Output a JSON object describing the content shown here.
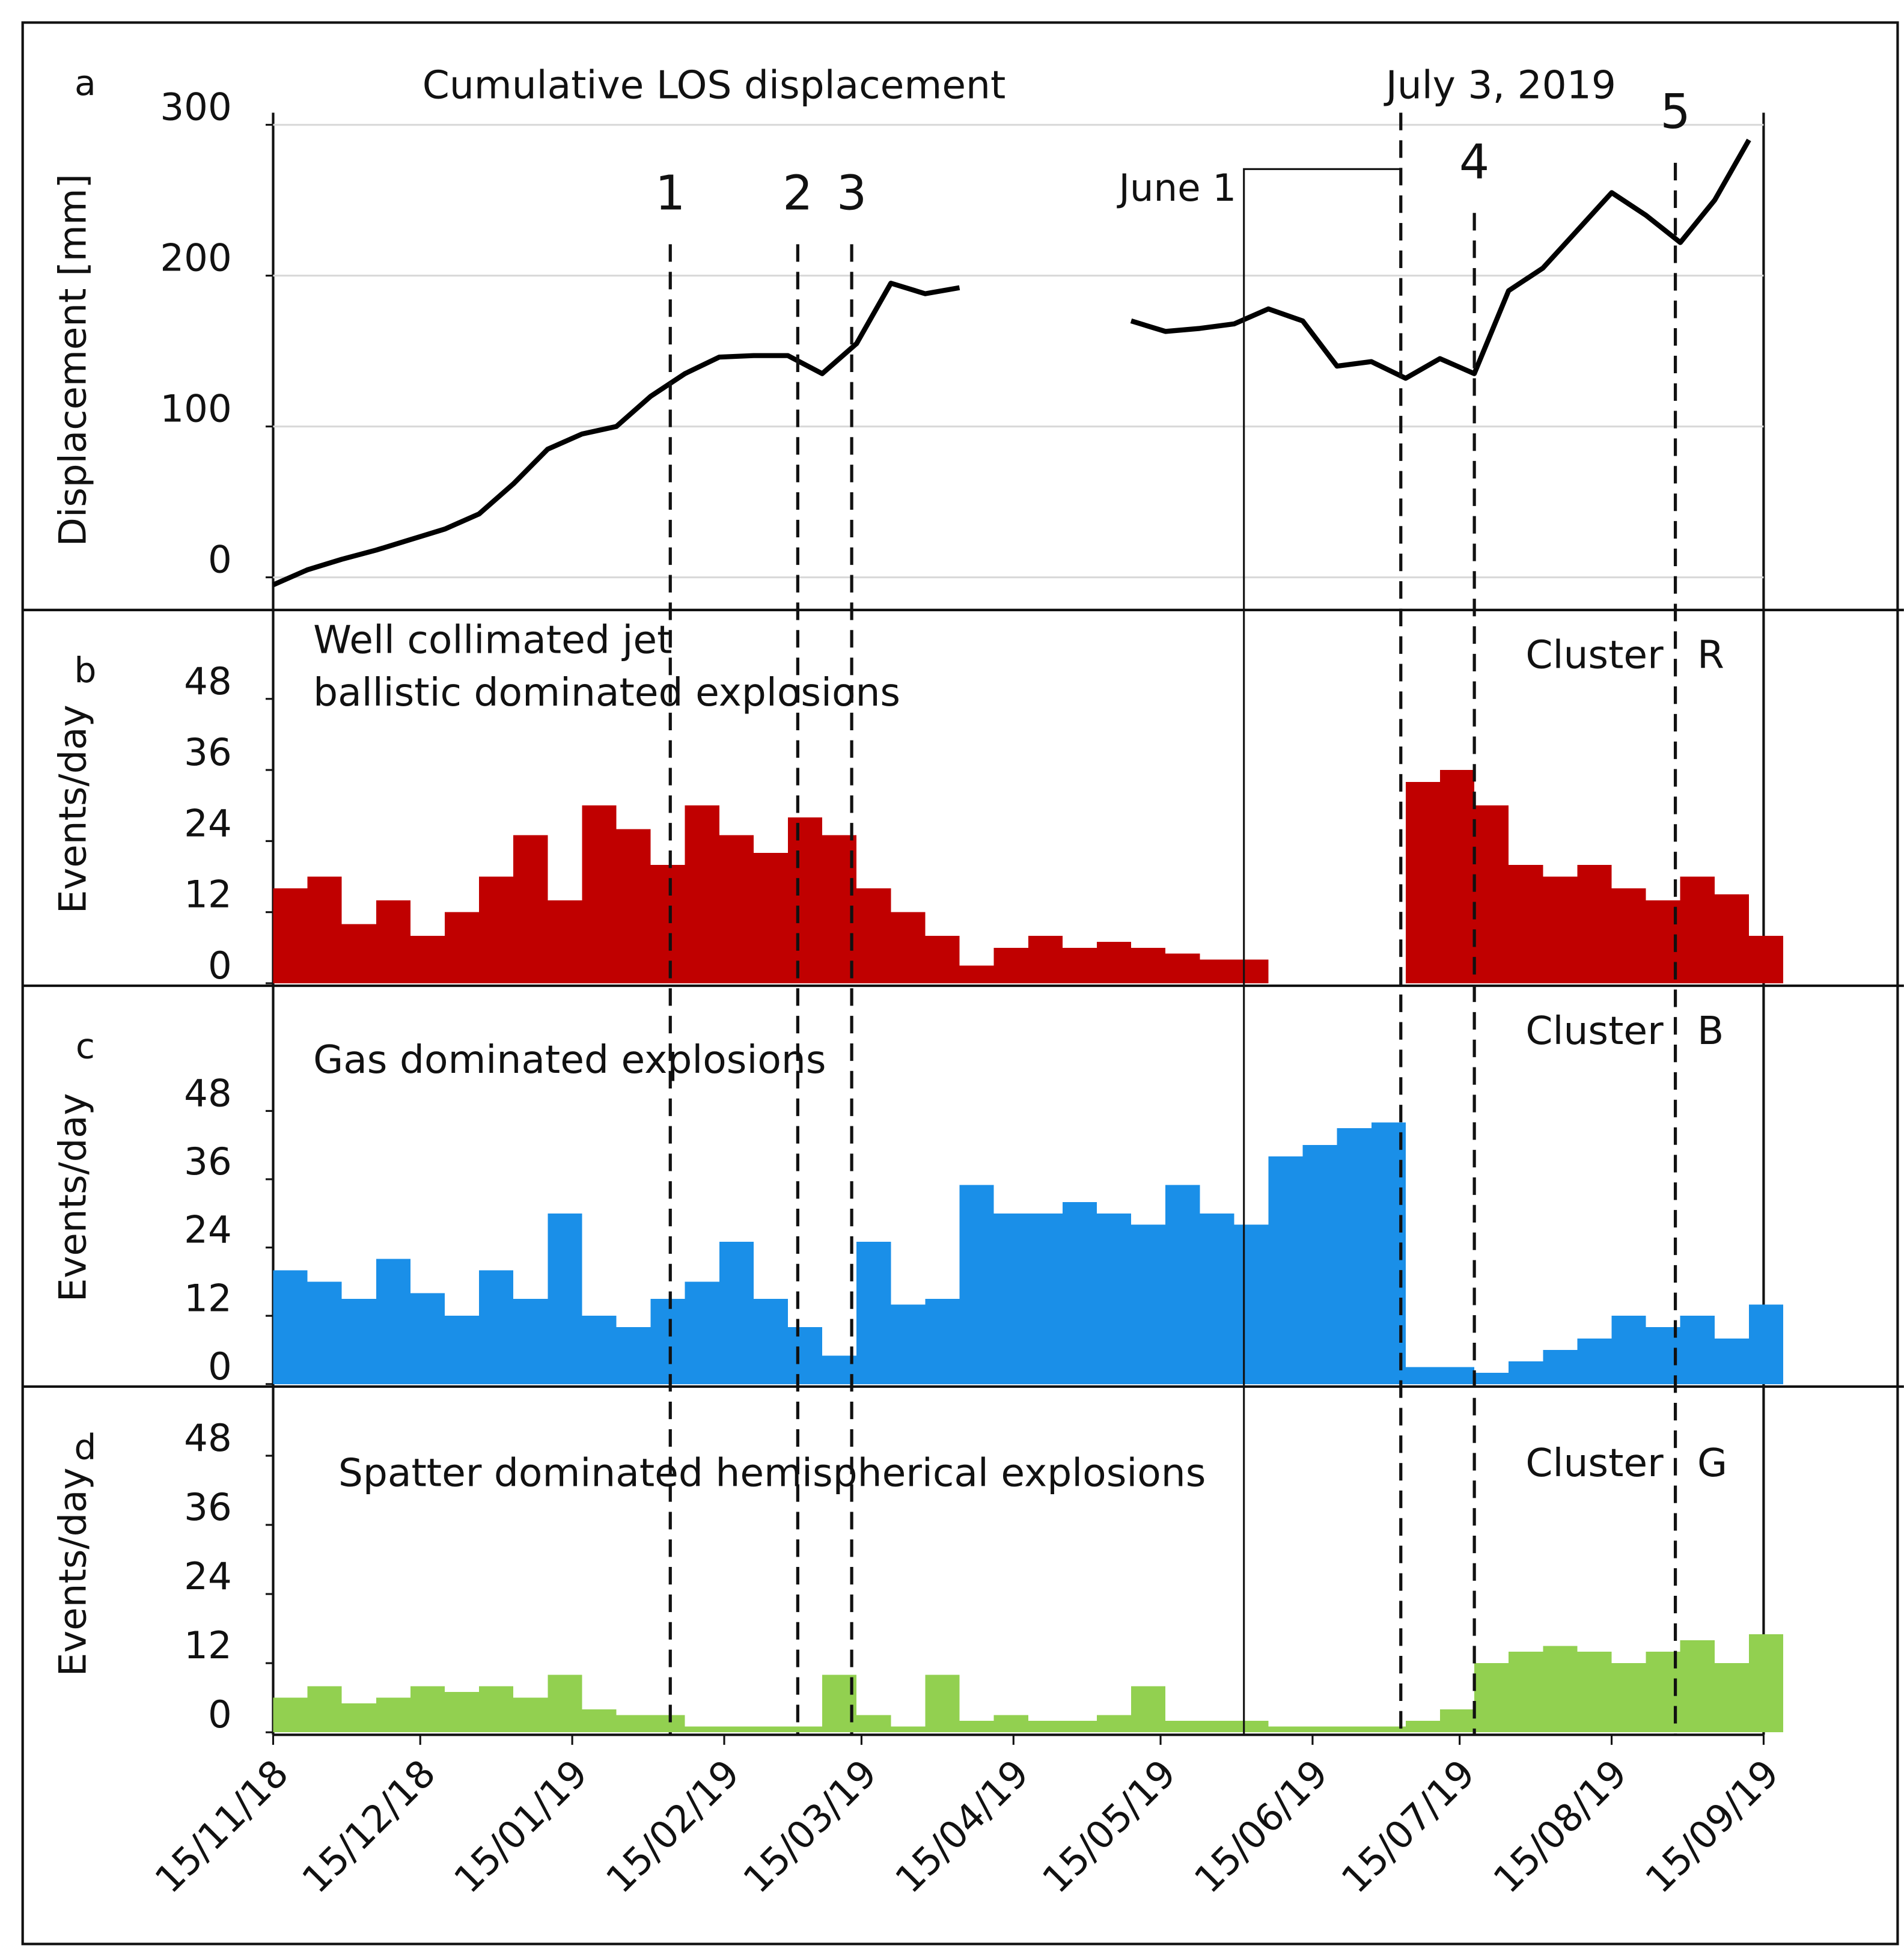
{
  "chart_data": [
    {
      "type": "line",
      "panel": "a",
      "title": "Cumulative LOS displacement",
      "ylabel": "Displacement [mm]",
      "color": "#000000",
      "xlim": [
        "2018-11-15",
        "2019-09-15"
      ],
      "ylim": [
        -20,
        308
      ],
      "yticks": [
        0,
        100,
        200,
        300
      ],
      "grid": true,
      "x": [
        "2018-11-15",
        "2018-11-22",
        "2018-11-29",
        "2018-12-06",
        "2018-12-13",
        "2018-12-20",
        "2018-12-27",
        "2019-01-03",
        "2019-01-10",
        "2019-01-17",
        "2019-01-24",
        "2019-01-31",
        "2019-02-07",
        "2019-02-14",
        "2019-02-21",
        "2019-02-28",
        "2019-03-07",
        "2019-03-14",
        "2019-03-21",
        "2019-03-28",
        "2019-04-04",
        "2019-04-11",
        "2019-04-18",
        "2019-04-25",
        "2019-05-02",
        "2019-05-09",
        "2019-05-16",
        "2019-05-23",
        "2019-05-30",
        "2019-06-06",
        "2019-06-13",
        "2019-06-20",
        "2019-06-27",
        "2019-07-04",
        "2019-07-11",
        "2019-07-18",
        "2019-07-25",
        "2019-08-01",
        "2019-08-08",
        "2019-08-15",
        "2019-08-22",
        "2019-08-29",
        "2019-09-05",
        "2019-09-12"
      ],
      "values": [
        -5,
        5,
        12,
        18,
        25,
        32,
        42,
        62,
        85,
        95,
        100,
        120,
        135,
        146,
        147,
        147,
        135,
        155,
        195,
        188,
        192,
        null,
        null,
        null,
        null,
        170,
        163,
        165,
        168,
        178,
        170,
        140,
        143,
        132,
        145,
        135,
        190,
        205,
        230,
        255,
        240,
        222,
        250,
        290
      ],
      "markers": [
        {
          "label": "1",
          "x": "2019-02-04"
        },
        {
          "label": "2",
          "x": "2019-03-02"
        },
        {
          "label": "3",
          "x": "2019-03-13"
        },
        {
          "label": "4",
          "x": "2019-07-18"
        },
        {
          "label": "5",
          "x": "2019-08-28"
        }
      ],
      "window": {
        "start": "2019-06-01",
        "end": "2019-07-03",
        "start_label": "June 1",
        "end_label": "July 3, 2019"
      }
    },
    {
      "type": "bar",
      "panel": "b",
      "title_lines": [
        "Well collimated jet",
        "ballistic dominated explosions"
      ],
      "ylabel": "Events/day",
      "cluster_prefix": "Cluster",
      "cluster": "R",
      "color": "#c00000",
      "xlim": [
        "2018-11-15",
        "2019-09-15"
      ],
      "ylim": [
        0,
        63
      ],
      "yticks": [
        0,
        12,
        24,
        36,
        48
      ],
      "x": [
        "2018-11-15",
        "2018-11-22",
        "2018-11-29",
        "2018-12-06",
        "2018-12-13",
        "2018-12-20",
        "2018-12-27",
        "2019-01-03",
        "2019-01-10",
        "2019-01-17",
        "2019-01-24",
        "2019-01-31",
        "2019-02-07",
        "2019-02-14",
        "2019-02-21",
        "2019-02-28",
        "2019-03-07",
        "2019-03-14",
        "2019-03-21",
        "2019-03-28",
        "2019-04-04",
        "2019-04-11",
        "2019-04-18",
        "2019-04-25",
        "2019-05-02",
        "2019-05-09",
        "2019-05-16",
        "2019-05-23",
        "2019-05-30",
        "2019-06-06",
        "2019-06-13",
        "2019-06-20",
        "2019-06-27",
        "2019-07-04",
        "2019-07-11",
        "2019-07-18",
        "2019-07-25",
        "2019-08-01",
        "2019-08-08",
        "2019-08-15",
        "2019-08-22",
        "2019-08-29",
        "2019-09-05",
        "2019-09-12"
      ],
      "values": [
        16,
        18,
        10,
        14,
        8,
        12,
        18,
        25,
        14,
        30,
        26,
        20,
        30,
        25,
        22,
        28,
        25,
        16,
        12,
        8,
        3,
        6,
        8,
        6,
        7,
        6,
        5,
        4,
        4,
        0,
        0,
        0,
        0,
        34,
        36,
        30,
        20,
        18,
        20,
        16,
        14,
        18,
        15,
        8
      ]
    },
    {
      "type": "bar",
      "panel": "c",
      "title": "Gas dominated explosions",
      "ylabel": "Events/day",
      "cluster_prefix": "Cluster",
      "cluster": "B",
      "color": "#1a8fe8",
      "xlim": [
        "2018-11-15",
        "2019-09-15"
      ],
      "ylim": [
        0,
        70
      ],
      "yticks": [
        0,
        12,
        24,
        36,
        48
      ],
      "x": [
        "2018-11-15",
        "2018-11-22",
        "2018-11-29",
        "2018-12-06",
        "2018-12-13",
        "2018-12-20",
        "2018-12-27",
        "2019-01-03",
        "2019-01-10",
        "2019-01-17",
        "2019-01-24",
        "2019-01-31",
        "2019-02-07",
        "2019-02-14",
        "2019-02-21",
        "2019-02-28",
        "2019-03-07",
        "2019-03-14",
        "2019-03-21",
        "2019-03-28",
        "2019-04-04",
        "2019-04-11",
        "2019-04-18",
        "2019-04-25",
        "2019-05-02",
        "2019-05-09",
        "2019-05-16",
        "2019-05-23",
        "2019-05-30",
        "2019-06-06",
        "2019-06-13",
        "2019-06-20",
        "2019-06-27",
        "2019-07-04",
        "2019-07-11",
        "2019-07-18",
        "2019-07-25",
        "2019-08-01",
        "2019-08-08",
        "2019-08-15",
        "2019-08-22",
        "2019-08-29",
        "2019-09-05",
        "2019-09-12"
      ],
      "values": [
        20,
        18,
        15,
        22,
        16,
        12,
        20,
        15,
        30,
        12,
        10,
        15,
        18,
        25,
        15,
        10,
        5,
        25,
        14,
        15,
        35,
        30,
        30,
        32,
        30,
        28,
        35,
        30,
        28,
        40,
        42,
        45,
        46,
        3,
        3,
        2,
        4,
        6,
        8,
        12,
        10,
        12,
        8,
        14
      ]
    },
    {
      "type": "bar",
      "panel": "d",
      "title": "Spatter dominated hemispherical explosions",
      "ylabel": "Events/day",
      "cluster_prefix": "Cluster",
      "cluster": "G",
      "color": "#92d050",
      "xlim": [
        "2018-11-15",
        "2019-09-15"
      ],
      "ylim": [
        0,
        60
      ],
      "yticks": [
        0,
        12,
        24,
        36,
        48
      ],
      "xticks": [
        {
          "value": "2018-11-15",
          "label": "15/11/18"
        },
        {
          "value": "2018-12-15",
          "label": "15/12/18"
        },
        {
          "value": "2019-01-15",
          "label": "15/01/19"
        },
        {
          "value": "2019-02-15",
          "label": "15/02/19"
        },
        {
          "value": "2019-03-15",
          "label": "15/03/19"
        },
        {
          "value": "2019-04-15",
          "label": "15/04/19"
        },
        {
          "value": "2019-05-15",
          "label": "15/05/19"
        },
        {
          "value": "2019-06-15",
          "label": "15/06/19"
        },
        {
          "value": "2019-07-15",
          "label": "15/07/19"
        },
        {
          "value": "2019-08-15",
          "label": "15/08/19"
        },
        {
          "value": "2019-09-15",
          "label": "15/09/19"
        }
      ],
      "x": [
        "2018-11-15",
        "2018-11-22",
        "2018-11-29",
        "2018-12-06",
        "2018-12-13",
        "2018-12-20",
        "2018-12-27",
        "2019-01-03",
        "2019-01-10",
        "2019-01-17",
        "2019-01-24",
        "2019-01-31",
        "2019-02-07",
        "2019-02-14",
        "2019-02-21",
        "2019-02-28",
        "2019-03-07",
        "2019-03-14",
        "2019-03-21",
        "2019-03-28",
        "2019-04-04",
        "2019-04-11",
        "2019-04-18",
        "2019-04-25",
        "2019-05-02",
        "2019-05-09",
        "2019-05-16",
        "2019-05-23",
        "2019-05-30",
        "2019-06-06",
        "2019-06-13",
        "2019-06-20",
        "2019-06-27",
        "2019-07-04",
        "2019-07-11",
        "2019-07-18",
        "2019-07-25",
        "2019-08-01",
        "2019-08-08",
        "2019-08-15",
        "2019-08-22",
        "2019-08-29",
        "2019-09-05",
        "2019-09-12"
      ],
      "values": [
        6,
        8,
        5,
        6,
        8,
        7,
        8,
        6,
        10,
        4,
        3,
        3,
        1,
        1,
        1,
        1,
        10,
        3,
        1,
        10,
        2,
        3,
        2,
        2,
        3,
        8,
        2,
        2,
        2,
        1,
        1,
        1,
        1,
        2,
        4,
        12,
        14,
        15,
        14,
        12,
        14,
        16,
        12,
        17
      ]
    }
  ]
}
